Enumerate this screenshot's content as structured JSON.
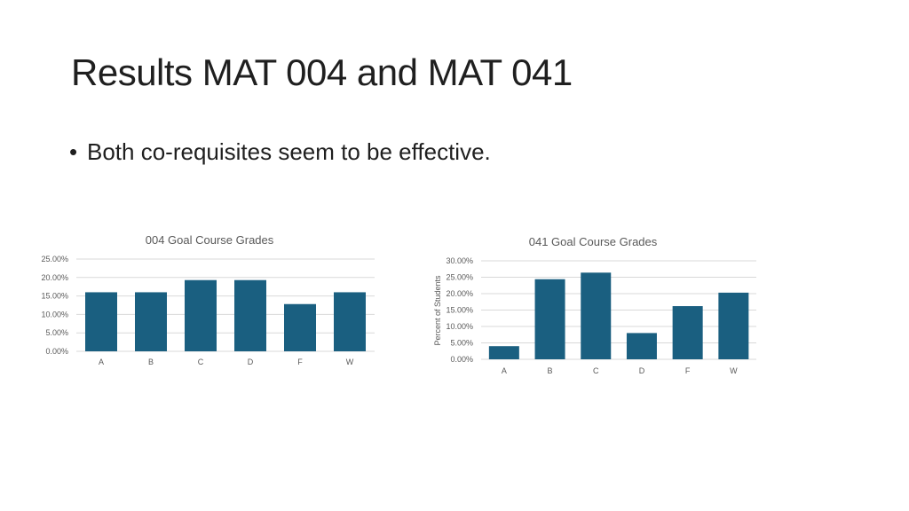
{
  "slide": {
    "title": "Results MAT 004 and MAT 041",
    "bullets": [
      "Both co-requisites seem to be effective."
    ]
  },
  "colors": {
    "bar": "#1a5f80",
    "grid": "#d9d9d9",
    "text": "#595959"
  },
  "chart_data": [
    {
      "type": "bar",
      "title": "004 Goal Course Grades",
      "categories": [
        "A",
        "B",
        "C",
        "D",
        "F",
        "W"
      ],
      "values": [
        16.0,
        16.0,
        19.3,
        19.3,
        12.8,
        16.0
      ],
      "yticks": [
        "0.00%",
        "5.00%",
        "10.00%",
        "15.00%",
        "20.00%",
        "25.00%"
      ],
      "ylim": [
        0,
        25
      ],
      "xlabel": "",
      "ylabel": "",
      "grid": true,
      "legend": "none"
    },
    {
      "type": "bar",
      "title": "041 Goal Course Grades",
      "categories": [
        "A",
        "B",
        "C",
        "D",
        "F",
        "W"
      ],
      "values": [
        4.0,
        24.4,
        26.4,
        8.0,
        16.2,
        20.3
      ],
      "yticks": [
        "0.00%",
        "5.00%",
        "10.00%",
        "15.00%",
        "20.00%",
        "25.00%",
        "30.00%"
      ],
      "ylim": [
        0,
        30
      ],
      "xlabel": "",
      "ylabel": "Percent of Students",
      "grid": true,
      "legend": "none"
    }
  ]
}
